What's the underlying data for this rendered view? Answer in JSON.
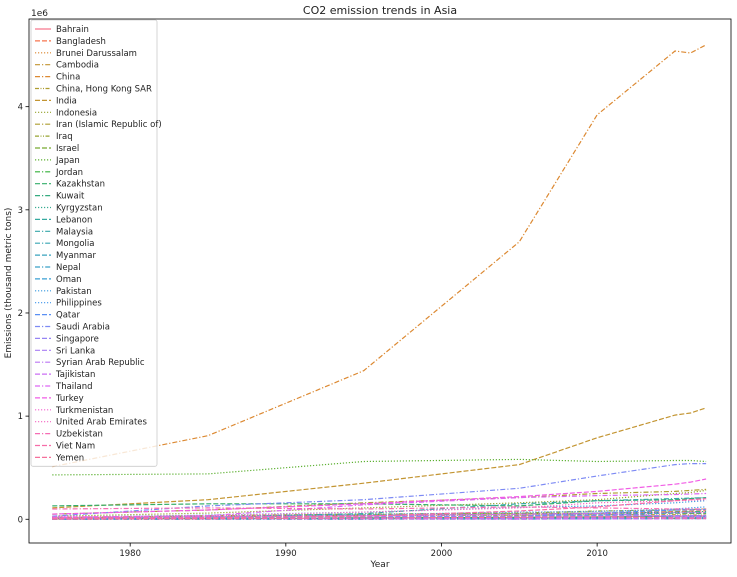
{
  "chart_data": {
    "type": "line",
    "title": "CO2 emission trends in Asia",
    "xlabel": "Year",
    "ylabel": "Emissions (thousand metric tons)",
    "y_scale_label": "1e6",
    "xlim": [
      1973.5,
      2018.6
    ],
    "ylim": [
      -230000,
      4850000
    ],
    "x_ticks": [
      1980,
      1990,
      2000,
      2010
    ],
    "y_ticks": [
      0,
      1000000,
      2000000,
      3000000,
      4000000
    ],
    "y_tick_labels": [
      "0",
      "1",
      "2",
      "3",
      "4"
    ],
    "grid": false,
    "legend_position": "upper-left",
    "x": [
      1975,
      1985,
      1995,
      2005,
      2010,
      2015,
      2016,
      2017
    ],
    "series": [
      {
        "name": "Bahrain",
        "color": "#f77189",
        "dash": "solid",
        "values": [
          4000,
          7000,
          12000,
          17000,
          24000,
          30000,
          31000,
          32000
        ]
      },
      {
        "name": "Bangladesh",
        "color": "#f7754f",
        "dash": "dashed",
        "values": [
          4000,
          7000,
          14000,
          35000,
          55000,
          75000,
          78000,
          82000
        ]
      },
      {
        "name": "Brunei Darussalam",
        "color": "#dc8932",
        "dash": "dotted",
        "values": [
          3000,
          4000,
          5000,
          6000,
          7000,
          7000,
          7000,
          7000
        ]
      },
      {
        "name": "Cambodia",
        "color": "#c39532",
        "dash": "dashdot",
        "values": [
          1000,
          1000,
          2000,
          3000,
          5000,
          8000,
          9000,
          10000
        ]
      },
      {
        "name": "China",
        "color": "#dc8932",
        "dash": "dashdot",
        "values": [
          510000,
          810000,
          1440000,
          2690000,
          3920000,
          4540000,
          4520000,
          4600000
        ]
      },
      {
        "name": "China, Hong Kong SAR",
        "color": "#ae9d31",
        "dash": "dashdotdot",
        "values": [
          20000,
          26000,
          33000,
          40000,
          43000,
          44000,
          42000,
          41000
        ]
      },
      {
        "name": "India",
        "color": "#c39532",
        "dash": "dashed",
        "values": [
          110000,
          190000,
          350000,
          530000,
          790000,
          1010000,
          1030000,
          1080000
        ]
      },
      {
        "name": "Indonesia",
        "color": "#97a431",
        "dash": "dotted",
        "values": [
          30000,
          60000,
          110000,
          160000,
          190000,
          250000,
          260000,
          280000
        ]
      },
      {
        "name": "Iran (Islamic Republic of)",
        "color": "#ae9d31",
        "dash": "dashdot",
        "values": [
          50000,
          90000,
          160000,
          210000,
          250000,
          270000,
          280000,
          290000
        ]
      },
      {
        "name": "Iraq",
        "color": "#97a431",
        "dash": "dashdotdot",
        "values": [
          15000,
          35000,
          50000,
          60000,
          80000,
          90000,
          95000,
          100000
        ]
      },
      {
        "name": "Israel",
        "color": "#77ab31",
        "dash": "dashed",
        "values": [
          15000,
          20000,
          40000,
          55000,
          60000,
          58000,
          57000,
          57000
        ]
      },
      {
        "name": "Japan",
        "color": "#5db032",
        "dash": "dotted",
        "values": [
          430000,
          440000,
          560000,
          580000,
          560000,
          570000,
          570000,
          560000
        ]
      },
      {
        "name": "Jordan",
        "color": "#33b039",
        "dash": "dashdot",
        "values": [
          3000,
          9000,
          14000,
          18000,
          21000,
          24000,
          24000,
          24000
        ]
      },
      {
        "name": "Kazakhstan",
        "color": "#34ae6a",
        "dash": "dashed",
        "values": [
          130000,
          150000,
          150000,
          130000,
          180000,
          190000,
          200000,
          210000
        ]
      },
      {
        "name": "Kuwait",
        "color": "#35ac80",
        "dash": "dashdot",
        "values": [
          14000,
          25000,
          35000,
          50000,
          60000,
          70000,
          72000,
          75000
        ]
      },
      {
        "name": "Kyrgyzstan",
        "color": "#36ab91",
        "dash": "dotted",
        "values": [
          9000,
          10000,
          6000,
          5000,
          6000,
          9000,
          9000,
          9000
        ]
      },
      {
        "name": "Lebanon",
        "color": "#36a99f",
        "dash": "dashed",
        "values": [
          5000,
          7000,
          13000,
          15000,
          19000,
          22000,
          22000,
          22000
        ]
      },
      {
        "name": "Malaysia",
        "color": "#37a7aa",
        "dash": "dashdot",
        "values": [
          12000,
          22000,
          55000,
          150000,
          180000,
          200000,
          205000,
          210000
        ]
      },
      {
        "name": "Mongolia",
        "color": "#38a5b4",
        "dash": "dashdot",
        "values": [
          5000,
          10000,
          9000,
          10000,
          13000,
          15000,
          16000,
          17000
        ]
      },
      {
        "name": "Myanmar",
        "color": "#38a3be",
        "dash": "dashed",
        "values": [
          4000,
          5000,
          7000,
          10000,
          12000,
          20000,
          22000,
          25000
        ]
      },
      {
        "name": "Nepal",
        "color": "#39a1c8",
        "dash": "dashdot",
        "values": [
          200,
          400,
          1500,
          2500,
          3500,
          5000,
          6000,
          7000
        ]
      },
      {
        "name": "Oman",
        "color": "#3a9fd3",
        "dash": "dashed",
        "values": [
          2000,
          6000,
          14000,
          24000,
          40000,
          62000,
          63000,
          64000
        ]
      },
      {
        "name": "Pakistan",
        "color": "#3b9be0",
        "dash": "dotted",
        "values": [
          20000,
          40000,
          70000,
          115000,
          130000,
          160000,
          170000,
          180000
        ]
      },
      {
        "name": "Philippines",
        "color": "#4297ec",
        "dash": "dotted",
        "values": [
          20000,
          25000,
          45000,
          70000,
          75000,
          100000,
          110000,
          120000
        ]
      },
      {
        "name": "Qatar",
        "color": "#5a90f4",
        "dash": "dashed",
        "values": [
          3000,
          7000,
          12000,
          30000,
          60000,
          90000,
          92000,
          95000
        ]
      },
      {
        "name": "Saudi Arabia",
        "color": "#7d8af4",
        "dash": "dashdot",
        "values": [
          30000,
          130000,
          190000,
          300000,
          420000,
          530000,
          540000,
          540000
        ]
      },
      {
        "name": "Singapore",
        "color": "#9684f4",
        "dash": "dashed",
        "values": [
          8000,
          20000,
          28000,
          30000,
          34000,
          36000,
          37000,
          38000
        ]
      },
      {
        "name": "Sri Lanka",
        "color": "#a97ef4",
        "dash": "dashed",
        "values": [
          2000,
          3000,
          5000,
          12000,
          12000,
          18000,
          19000,
          20000
        ]
      },
      {
        "name": "Syrian Arab Republic",
        "color": "#bb77f4",
        "dash": "dashdot",
        "values": [
          10000,
          22000,
          35000,
          48000,
          55000,
          28000,
          27000,
          27000
        ]
      },
      {
        "name": "Tajikistan",
        "color": "#cb6ff4",
        "dash": "dashed",
        "values": [
          6000,
          7000,
          4000,
          2000,
          2500,
          5000,
          5500,
          6000
        ]
      },
      {
        "name": "Thailand",
        "color": "#dd67f4",
        "dash": "dashdot",
        "values": [
          20000,
          35000,
          140000,
          210000,
          230000,
          240000,
          245000,
          250000
        ]
      },
      {
        "name": "Turkey",
        "color": "#f15de5",
        "dash": "dashed",
        "values": [
          50000,
          90000,
          150000,
          220000,
          270000,
          340000,
          360000,
          390000
        ]
      },
      {
        "name": "Turkmenistan",
        "color": "#f563d2",
        "dash": "dotted",
        "values": [
          25000,
          30000,
          35000,
          50000,
          60000,
          65000,
          66000,
          67000
        ]
      },
      {
        "name": "United Arab Emirates",
        "color": "#f568c2",
        "dash": "dotted",
        "values": [
          15000,
          35000,
          70000,
          110000,
          160000,
          180000,
          185000,
          190000
        ]
      },
      {
        "name": "Uzbekistan",
        "color": "#f66cb4",
        "dash": "dashdot",
        "values": [
          100000,
          110000,
          100000,
          120000,
          110000,
          100000,
          100000,
          100000
        ]
      },
      {
        "name": "Viet Nam",
        "color": "#f66da8",
        "dash": "dashed",
        "values": [
          10000,
          15000,
          30000,
          80000,
          120000,
          180000,
          190000,
          200000
        ]
      },
      {
        "name": "Yemen",
        "color": "#f6709b",
        "dash": "dashed",
        "values": [
          2000,
          6000,
          12000,
          20000,
          24000,
          12000,
          11000,
          10000
        ]
      }
    ]
  }
}
